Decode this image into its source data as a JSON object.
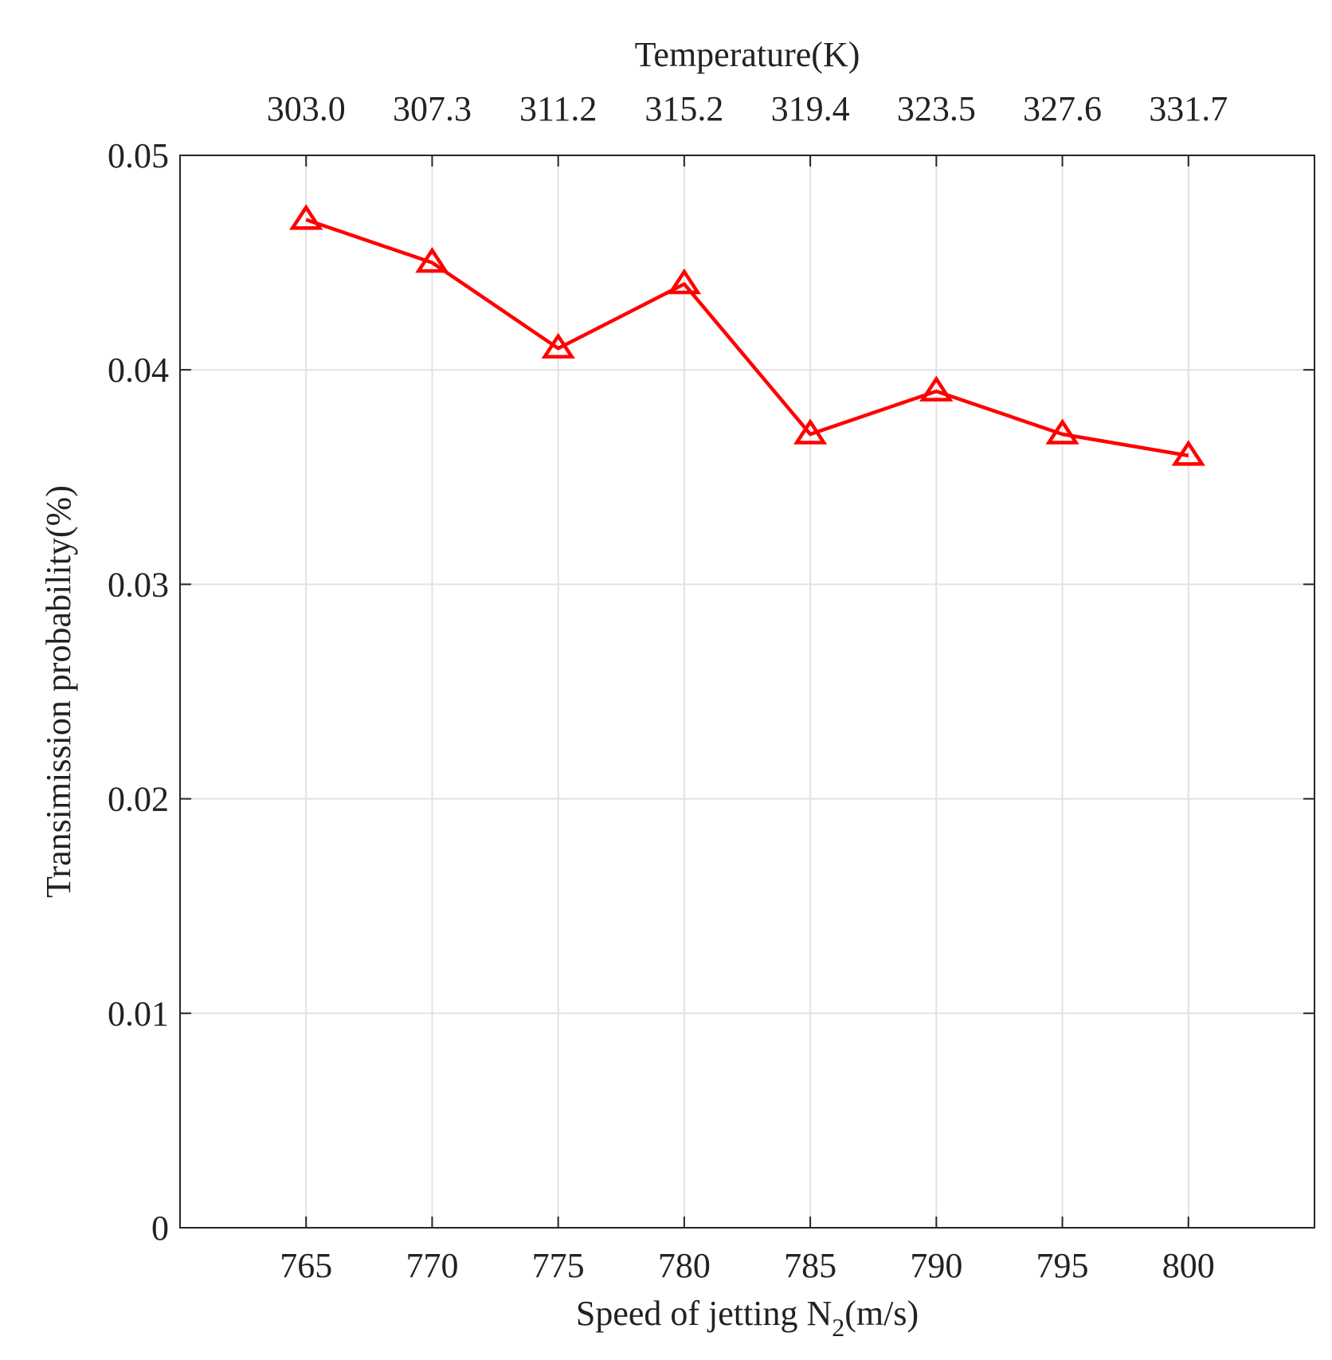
{
  "chart_data": {
    "type": "line",
    "x": [
      765,
      770,
      775,
      780,
      785,
      790,
      795,
      800
    ],
    "x_ticks": [
      "765",
      "770",
      "775",
      "780",
      "785",
      "790",
      "795",
      "800"
    ],
    "xlim": [
      760,
      805
    ],
    "xlabel_main": "Speed of jetting N",
    "xlabel_sub": "2",
    "xlabel_unit": "(m/s)",
    "ylabel": "Transimission probability(%)",
    "ylim": [
      0,
      0.05
    ],
    "y_ticks": [
      0,
      0.01,
      0.02,
      0.03,
      0.04,
      0.05
    ],
    "y_tick_labels": [
      "0",
      "0.01",
      "0.02",
      "0.03",
      "0.04",
      "0.05"
    ],
    "top_axis_label": "Temperature(K)",
    "top_ticks": [
      "303.0",
      "307.3",
      "311.2",
      "315.2",
      "319.4",
      "323.5",
      "327.6",
      "331.7"
    ],
    "grid": true,
    "series": [
      {
        "name": "Transimission probability",
        "color": "#ff0000",
        "marker": "triangle",
        "values": [
          0.047,
          0.045,
          0.041,
          0.044,
          0.037,
          0.039,
          0.037,
          0.036
        ]
      }
    ]
  }
}
